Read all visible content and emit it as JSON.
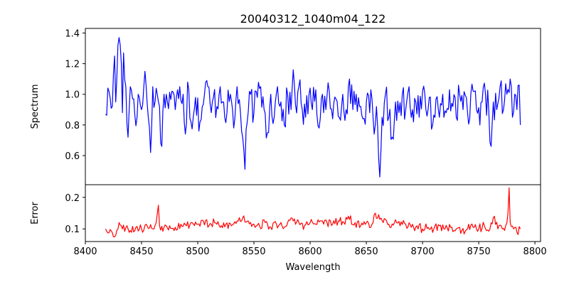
{
  "chart_data": [
    {
      "type": "line",
      "title": "20040312_1040m04_122",
      "xlabel": "",
      "ylabel": "Spectrum",
      "xlim": [
        8400,
        8805
      ],
      "ylim": [
        0.41,
        1.43
      ],
      "xticks": [
        8400,
        8450,
        8500,
        8550,
        8600,
        8650,
        8700,
        8750,
        8800
      ],
      "xticklabels": [
        "",
        "",
        "",
        "",
        "",
        "",
        "",
        "",
        ""
      ],
      "yticks": [
        0.6,
        0.8,
        1.0,
        1.2,
        1.4
      ],
      "yticklabels": [
        "0.6",
        "0.8",
        "1.0",
        "1.2",
        "1.4"
      ],
      "grid": false,
      "series": [
        {
          "color": "#0000ff",
          "x_start": 8418,
          "x_end": 8787,
          "anchors": [
            [
              8418,
              0.87
            ],
            [
              8421,
              1.02
            ],
            [
              8424,
              0.92
            ],
            [
              8426,
              1.25
            ],
            [
              8427,
              0.95
            ],
            [
              8429,
              1.32
            ],
            [
              8430,
              1.37
            ],
            [
              8432,
              1.2
            ],
            [
              8433,
              0.88
            ],
            [
              8434,
              1.27
            ],
            [
              8436,
              1.05
            ],
            [
              8438,
              0.72
            ],
            [
              8440,
              1.05
            ],
            [
              8443,
              0.97
            ],
            [
              8446,
              0.85
            ],
            [
              8448,
              0.98
            ],
            [
              8450,
              0.9
            ],
            [
              8452,
              1.05
            ],
            [
              8453,
              1.15
            ],
            [
              8456,
              0.85
            ],
            [
              8458,
              0.62
            ],
            [
              8460,
              1.05
            ],
            [
              8462,
              0.95
            ],
            [
              8464,
              1.0
            ],
            [
              8466,
              0.92
            ],
            [
              8468,
              0.66
            ],
            [
              8470,
              1.0
            ],
            [
              8473,
              0.95
            ],
            [
              8477,
              1.02
            ],
            [
              8480,
              0.9
            ],
            [
              8484,
              1.05
            ],
            [
              8487,
              1.0
            ],
            [
              8489,
              0.74
            ],
            [
              8491,
              1.08
            ],
            [
              8494,
              0.82
            ],
            [
              8498,
              0.98
            ],
            [
              8502,
              0.82
            ],
            [
              8506,
              1.0
            ],
            [
              8509,
              1.05
            ],
            [
              8512,
              0.88
            ],
            [
              8514,
              0.98
            ],
            [
              8517,
              0.92
            ],
            [
              8520,
              1.05
            ],
            [
              8523,
              0.95
            ],
            [
              8526,
              0.88
            ],
            [
              8529,
              1.0
            ],
            [
              8532,
              0.78
            ],
            [
              8535,
              1.05
            ],
            [
              8538,
              0.88
            ],
            [
              8540,
              0.72
            ],
            [
              8542,
              0.51
            ],
            [
              8544,
              0.82
            ],
            [
              8547,
              1.0
            ],
            [
              8550,
              0.88
            ],
            [
              8553,
              0.98
            ],
            [
              8556,
              1.05
            ],
            [
              8559,
              0.9
            ],
            [
              8562,
              0.75
            ],
            [
              8565,
              1.0
            ],
            [
              8568,
              0.85
            ],
            [
              8571,
              1.05
            ],
            [
              8574,
              0.95
            ],
            [
              8577,
              0.8
            ],
            [
              8580,
              1.0
            ],
            [
              8583,
              0.9
            ],
            [
              8585,
              1.16
            ],
            [
              8587,
              0.93
            ],
            [
              8590,
              1.05
            ],
            [
              8593,
              0.9
            ],
            [
              8596,
              0.85
            ],
            [
              8599,
              1.0
            ],
            [
              8602,
              0.9
            ],
            [
              8605,
              1.03
            ],
            [
              8608,
              0.78
            ],
            [
              8611,
              1.0
            ],
            [
              8614,
              0.9
            ],
            [
              8617,
              1.02
            ],
            [
              8620,
              0.84
            ],
            [
              8623,
              0.97
            ],
            [
              8626,
              0.85
            ],
            [
              8629,
              1.0
            ],
            [
              8632,
              0.9
            ],
            [
              8634,
              1.05
            ],
            [
              8635,
              1.1
            ],
            [
              8638,
              0.9
            ],
            [
              8641,
              1.0
            ],
            [
              8644,
              0.92
            ],
            [
              8647,
              0.84
            ],
            [
              8650,
              0.95
            ],
            [
              8653,
              0.88
            ],
            [
              8655,
              0.97
            ],
            [
              8657,
              0.74
            ],
            [
              8659,
              0.92
            ],
            [
              8661,
              0.58
            ],
            [
              8662,
              0.46
            ],
            [
              8664,
              0.85
            ],
            [
              8667,
              1.0
            ],
            [
              8670,
              0.85
            ],
            [
              8673,
              0.72
            ],
            [
              8676,
              0.95
            ],
            [
              8679,
              0.88
            ],
            [
              8682,
              1.0
            ],
            [
              8685,
              0.9
            ],
            [
              8688,
              1.05
            ],
            [
              8691,
              0.9
            ],
            [
              8694,
              0.95
            ],
            [
              8697,
              0.85
            ],
            [
              8700,
              1.02
            ],
            [
              8703,
              0.9
            ],
            [
              8706,
              0.98
            ],
            [
              8709,
              0.8
            ],
            [
              8712,
              0.97
            ],
            [
              8715,
              0.85
            ],
            [
              8718,
              1.0
            ],
            [
              8721,
              0.88
            ],
            [
              8724,
              1.03
            ],
            [
              8727,
              0.92
            ],
            [
              8730,
              0.85
            ],
            [
              8733,
              1.0
            ],
            [
              8736,
              0.9
            ],
            [
              8739,
              0.98
            ],
            [
              8742,
              0.84
            ],
            [
              8745,
              1.02
            ],
            [
              8748,
              0.9
            ],
            [
              8751,
              0.8
            ],
            [
              8753,
              0.95
            ],
            [
              8756,
              1.0
            ],
            [
              8759,
              0.88
            ],
            [
              8761,
              0.66
            ],
            [
              8763,
              0.95
            ],
            [
              8766,
              0.9
            ],
            [
              8769,
              1.05
            ],
            [
              8772,
              0.9
            ],
            [
              8775,
              1.0
            ],
            [
              8778,
              1.1
            ],
            [
              8780,
              0.85
            ],
            [
              8782,
              1.0
            ],
            [
              8784,
              0.9
            ],
            [
              8786,
              1.06
            ],
            [
              8787,
              0.8
            ]
          ],
          "noise_amplitude": 0.11,
          "noise_points": 370
        }
      ]
    },
    {
      "type": "line",
      "title": "",
      "xlabel": "Wavelength",
      "ylabel": "Error",
      "xlim": [
        8400,
        8805
      ],
      "ylim": [
        0.06,
        0.24
      ],
      "xticks": [
        8400,
        8450,
        8500,
        8550,
        8600,
        8650,
        8700,
        8750,
        8800
      ],
      "xticklabels": [
        "8400",
        "8450",
        "8500",
        "8550",
        "8600",
        "8650",
        "8700",
        "8750",
        "8800"
      ],
      "yticks": [
        0.1,
        0.2
      ],
      "yticklabels": [
        "0.1",
        "0.2"
      ],
      "grid": false,
      "series": [
        {
          "color": "#ff0000",
          "x_start": 8418,
          "x_end": 8787,
          "anchors": [
            [
              8418,
              0.1
            ],
            [
              8422,
              0.098
            ],
            [
              8425,
              0.075
            ],
            [
              8428,
              0.095
            ],
            [
              8430,
              0.12
            ],
            [
              8433,
              0.1
            ],
            [
              8437,
              0.11
            ],
            [
              8440,
              0.095
            ],
            [
              8445,
              0.105
            ],
            [
              8450,
              0.1
            ],
            [
              8455,
              0.11
            ],
            [
              8460,
              0.1
            ],
            [
              8463,
              0.12
            ],
            [
              8465,
              0.175
            ],
            [
              8466,
              0.11
            ],
            [
              8470,
              0.105
            ],
            [
              8475,
              0.11
            ],
            [
              8480,
              0.105
            ],
            [
              8485,
              0.115
            ],
            [
              8490,
              0.11
            ],
            [
              8495,
              0.12
            ],
            [
              8500,
              0.115
            ],
            [
              8505,
              0.125
            ],
            [
              8510,
              0.11
            ],
            [
              8515,
              0.12
            ],
            [
              8520,
              0.105
            ],
            [
              8525,
              0.115
            ],
            [
              8530,
              0.11
            ],
            [
              8535,
              0.125
            ],
            [
              8540,
              0.135
            ],
            [
              8545,
              0.125
            ],
            [
              8550,
              0.115
            ],
            [
              8555,
              0.11
            ],
            [
              8560,
              0.12
            ],
            [
              8565,
              0.105
            ],
            [
              8570,
              0.115
            ],
            [
              8575,
              0.11
            ],
            [
              8580,
              0.12
            ],
            [
              8585,
              0.125
            ],
            [
              8590,
              0.12
            ],
            [
              8595,
              0.11
            ],
            [
              8600,
              0.12
            ],
            [
              8605,
              0.115
            ],
            [
              8610,
              0.125
            ],
            [
              8615,
              0.12
            ],
            [
              8620,
              0.115
            ],
            [
              8625,
              0.125
            ],
            [
              8630,
              0.12
            ],
            [
              8635,
              0.13
            ],
            [
              8640,
              0.12
            ],
            [
              8645,
              0.11
            ],
            [
              8650,
              0.12
            ],
            [
              8655,
              0.115
            ],
            [
              8658,
              0.15
            ],
            [
              8662,
              0.13
            ],
            [
              8665,
              0.12
            ],
            [
              8670,
              0.115
            ],
            [
              8675,
              0.12
            ],
            [
              8680,
              0.11
            ],
            [
              8685,
              0.115
            ],
            [
              8690,
              0.105
            ],
            [
              8695,
              0.11
            ],
            [
              8700,
              0.1
            ],
            [
              8705,
              0.105
            ],
            [
              8710,
              0.1
            ],
            [
              8715,
              0.11
            ],
            [
              8720,
              0.1
            ],
            [
              8725,
              0.105
            ],
            [
              8730,
              0.1
            ],
            [
              8735,
              0.095
            ],
            [
              8740,
              0.1
            ],
            [
              8745,
              0.105
            ],
            [
              8750,
              0.1
            ],
            [
              8755,
              0.11
            ],
            [
              8760,
              0.1
            ],
            [
              8764,
              0.14
            ],
            [
              8767,
              0.1
            ],
            [
              8770,
              0.11
            ],
            [
              8773,
              0.095
            ],
            [
              8776,
              0.15
            ],
            [
              8777,
              0.23
            ],
            [
              8778,
              0.12
            ],
            [
              8781,
              0.1
            ],
            [
              8784,
              0.09
            ],
            [
              8787,
              0.1
            ]
          ],
          "noise_amplitude": 0.014,
          "noise_points": 370
        }
      ]
    }
  ]
}
